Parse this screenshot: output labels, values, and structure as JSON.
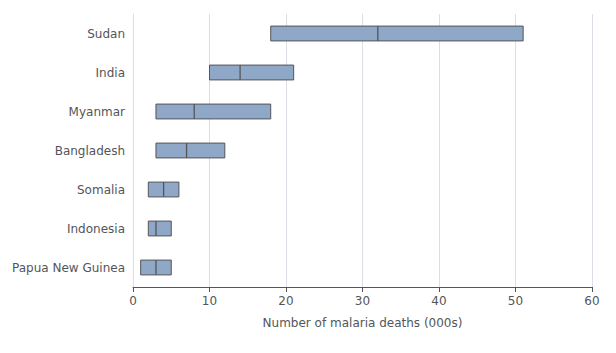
{
  "chart_data": {
    "type": "range",
    "orientation": "horizontal",
    "categories": [
      "Sudan",
      "India",
      "Myanmar",
      "Bangladesh",
      "Somalia",
      "Indonesia",
      "Papua New Guinea"
    ],
    "low": [
      18,
      10,
      3,
      3,
      2,
      2,
      1
    ],
    "values": [
      32,
      14,
      8,
      7,
      4,
      3,
      3
    ],
    "high": [
      51,
      21,
      18,
      12,
      6,
      5,
      5
    ],
    "color": "#8fa8c8",
    "xlabel": "Number of malaria deaths (000s)",
    "xlim": [
      0,
      60
    ],
    "xticks": [
      0,
      10,
      20,
      30,
      40,
      50,
      60
    ],
    "grid": true
  }
}
